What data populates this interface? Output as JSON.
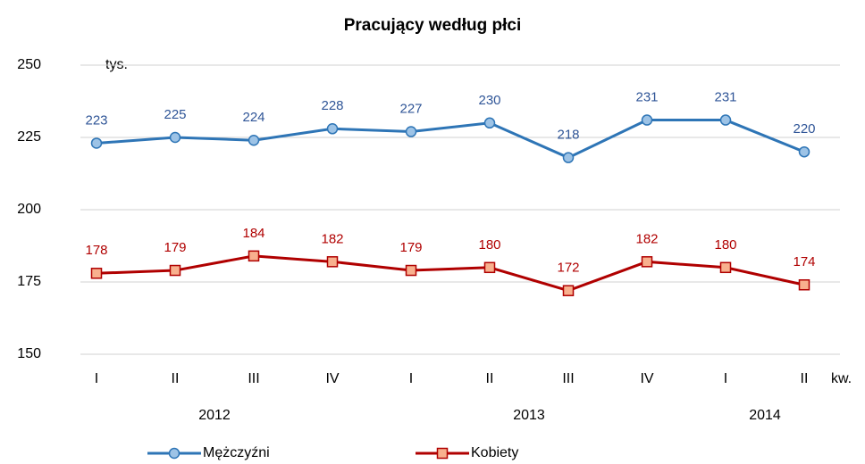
{
  "chart_data": {
    "type": "line",
    "title": "Pracujący według płci",
    "y_unit": "tys.",
    "x_unit": "kw.",
    "categories": [
      "I",
      "II",
      "III",
      "IV",
      "I",
      "II",
      "III",
      "IV",
      "I",
      "II"
    ],
    "x_groups": [
      {
        "label": "2012",
        "size": 4
      },
      {
        "label": "2013",
        "size": 4
      },
      {
        "label": "2014",
        "size": 2
      }
    ],
    "series": [
      {
        "name": "Mężczyźni",
        "color": "#2e75b6",
        "marker": "circle",
        "marker_fill": "#9dc3e6",
        "label_color": "#2f5597",
        "values": [
          223,
          225,
          224,
          228,
          227,
          230,
          218,
          231,
          231,
          220
        ]
      },
      {
        "name": "Kobiety",
        "color": "#b00000",
        "marker": "square",
        "marker_fill": "#f8b08e",
        "label_color": "#b00000",
        "values": [
          178,
          179,
          184,
          182,
          179,
          180,
          172,
          182,
          180,
          174
        ]
      }
    ],
    "ylim": [
      150,
      250
    ],
    "yticks": [
      150,
      175,
      200,
      225,
      250
    ],
    "grid": true,
    "legend": "bottom"
  }
}
